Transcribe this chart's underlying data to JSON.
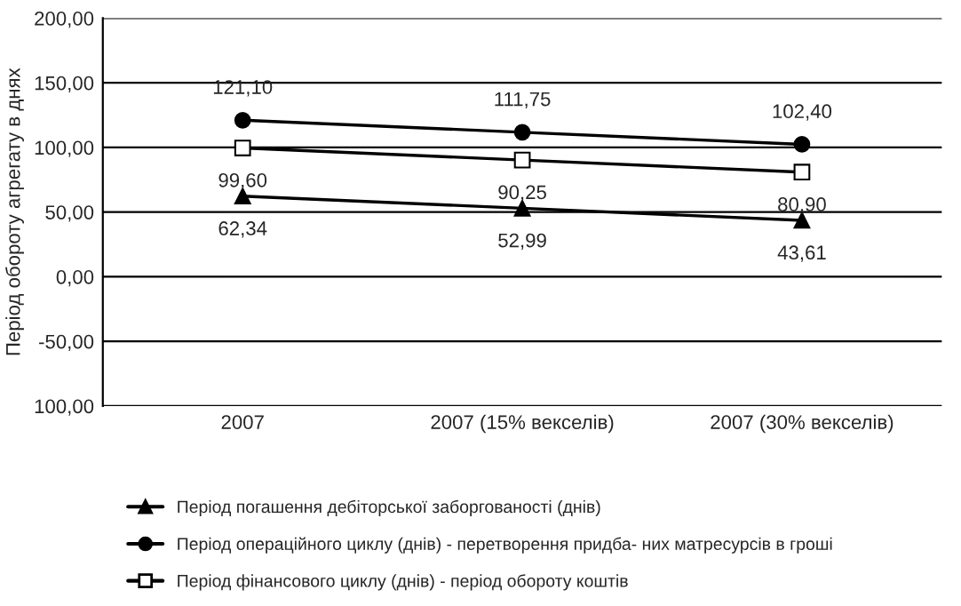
{
  "chart_data": {
    "type": "line",
    "ylabel": "Період обороту агрегату в днях",
    "categories": [
      "2007",
      "2007 (15% векселів)",
      "2007 (30% векселів)"
    ],
    "series": [
      {
        "name": "Період погашення дебіторської заборгованості (днів)",
        "color": "#000000",
        "marker": "triangle",
        "values": [
          62.34,
          52.99,
          43.61
        ],
        "value_labels": [
          "62,34",
          "52,99",
          "43,61"
        ]
      },
      {
        "name": "Період операційного циклу (днів) - перетворення придба- них матресурсів в гроші",
        "color": "#000000",
        "marker": "circle",
        "values": [
          121.1,
          111.75,
          102.4
        ],
        "value_labels": [
          "121,10",
          "111,75",
          "102,40"
        ]
      },
      {
        "name": "Період фінансового циклу (днів) - період обороту коштів",
        "color": "#000000",
        "marker": "square",
        "values": [
          99.6,
          90.25,
          80.9
        ],
        "value_labels": [
          "99,60",
          "90,25",
          "80,90"
        ]
      }
    ],
    "ylim": [
      -100,
      200
    ],
    "yticks": [
      {
        "value": -100,
        "label": "100,00"
      },
      {
        "value": -50,
        "label": "-50,00"
      },
      {
        "value": 0,
        "label": "0,00"
      },
      {
        "value": 50,
        "label": "50,00"
      },
      {
        "value": 100,
        "label": "100,00"
      },
      {
        "value": 150,
        "label": "150,00"
      },
      {
        "value": 200,
        "label": "200,00"
      }
    ],
    "grid": "y",
    "legend": "bottom"
  }
}
